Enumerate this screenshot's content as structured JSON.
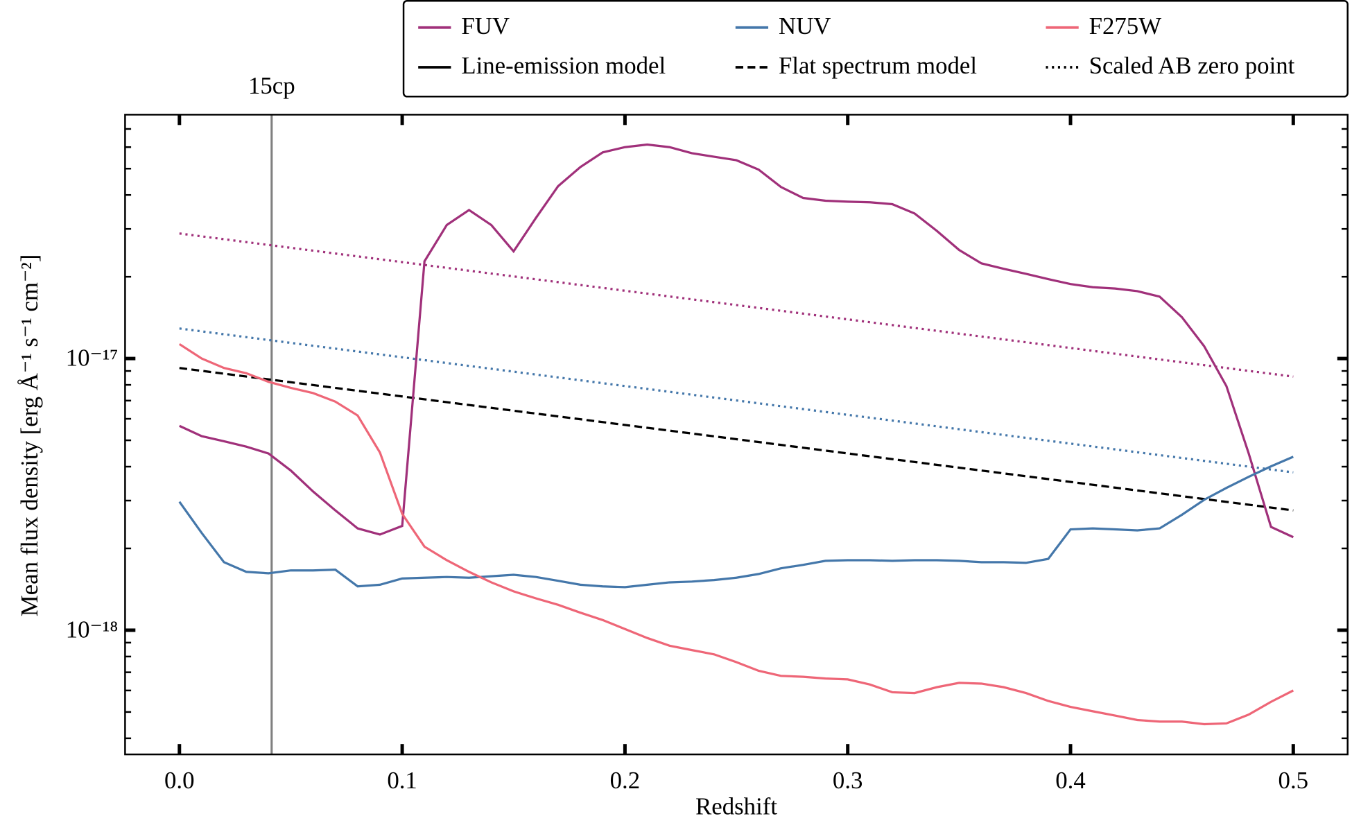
{
  "chart_data": {
    "type": "line",
    "xlabel": "Redshift",
    "ylabel": "Mean flux density [erg Å⁻¹ s⁻¹ cm⁻²]",
    "yscale": "log",
    "xlim": [
      -0.0244,
      0.5244
    ],
    "ylim": [
      3.49e-19,
      7.9e-17
    ],
    "xticks": [
      {
        "value": 0,
        "label": "0.0"
      },
      0.1,
      0.2,
      0.3,
      0.4,
      0.5
    ],
    "yticks": [
      {
        "value": 1e-18,
        "label": "10⁻¹⁸"
      },
      {
        "value": 1e-17,
        "label": "10⁻¹⁷"
      }
    ],
    "yminorticks": [
      4e-19,
      5e-19,
      6e-19,
      7e-19,
      8e-19,
      9e-19,
      2e-18,
      3e-18,
      4e-18,
      5e-18,
      6e-18,
      7e-18,
      8e-18,
      9e-18,
      2e-17,
      3e-17,
      4e-17,
      5e-17,
      6e-17,
      7e-17
    ],
    "legend": "upper right outside",
    "x": [
      0,
      0.01,
      0.02,
      0.03,
      0.04,
      0.05,
      0.06,
      0.07,
      0.08,
      0.09,
      0.1,
      0.11,
      0.12,
      0.13,
      0.14,
      0.15,
      0.16,
      0.17,
      0.18,
      0.19,
      0.2,
      0.21,
      0.22,
      0.23,
      0.24,
      0.25,
      0.26,
      0.27,
      0.28,
      0.29,
      0.3,
      0.31,
      0.32,
      0.33,
      0.34,
      0.35,
      0.36,
      0.37,
      0.38,
      0.39,
      0.4,
      0.41,
      0.42,
      0.43,
      0.44,
      0.45,
      0.46,
      0.47,
      0.48,
      0.49,
      0.5
    ],
    "series": [
      {
        "name": "FUV",
        "color": "#a0307a",
        "dash": "solid",
        "values": [
          5.65e-18,
          5.18e-18,
          4.96e-18,
          4.74e-18,
          4.47e-18,
          3.87e-18,
          3.24e-18,
          2.76e-18,
          2.37e-18,
          2.25e-18,
          2.42e-18,
          2.28e-17,
          3.1e-17,
          3.52e-17,
          3.1e-17,
          2.48e-17,
          3.29e-17,
          4.31e-17,
          5.07e-17,
          5.74e-17,
          6e-17,
          6.13e-17,
          6e-17,
          5.7e-17,
          5.53e-17,
          5.37e-17,
          4.96e-17,
          4.28e-17,
          3.9e-17,
          3.81e-17,
          3.78e-17,
          3.76e-17,
          3.7e-17,
          3.42e-17,
          2.95e-17,
          2.51e-17,
          2.24e-17,
          2.14e-17,
          2.05e-17,
          1.96e-17,
          1.88e-17,
          1.83e-17,
          1.81e-17,
          1.77e-17,
          1.69e-17,
          1.42e-17,
          1.11e-17,
          7.91e-18,
          4.47e-18,
          2.4e-18,
          2.2e-18
        ]
      },
      {
        "name": "NUV",
        "color": "#4477aa",
        "dash": "solid",
        "values": [
          2.97e-18,
          2.28e-18,
          1.78e-18,
          1.64e-18,
          1.62e-18,
          1.66e-18,
          1.66e-18,
          1.67e-18,
          1.45e-18,
          1.47e-18,
          1.55e-18,
          1.56e-18,
          1.57e-18,
          1.56e-18,
          1.58e-18,
          1.6e-18,
          1.57e-18,
          1.52e-18,
          1.47e-18,
          1.45e-18,
          1.44e-18,
          1.47e-18,
          1.5e-18,
          1.51e-18,
          1.53e-18,
          1.56e-18,
          1.61e-18,
          1.69e-18,
          1.74e-18,
          1.8e-18,
          1.81e-18,
          1.81e-18,
          1.8e-18,
          1.81e-18,
          1.81e-18,
          1.8e-18,
          1.78e-18,
          1.78e-18,
          1.77e-18,
          1.83e-18,
          2.35e-18,
          2.37e-18,
          2.35e-18,
          2.33e-18,
          2.37e-18,
          2.66e-18,
          3.02e-18,
          3.34e-18,
          3.67e-18,
          4.01e-18,
          4.35e-18
        ]
      },
      {
        "name": "F275W",
        "color": "#ee6677",
        "dash": "solid",
        "values": [
          1.13e-17,
          1e-17,
          9.23e-18,
          8.83e-18,
          8.21e-18,
          7.8e-18,
          7.46e-18,
          6.94e-18,
          6.17e-18,
          4.51e-18,
          2.68e-18,
          2.03e-18,
          1.81e-18,
          1.64e-18,
          1.5e-18,
          1.39e-18,
          1.31e-18,
          1.24e-18,
          1.16e-18,
          1.09e-18,
          1.01e-18,
          9.36e-19,
          8.77e-19,
          8.45e-19,
          8.15e-19,
          7.63e-19,
          7.09e-19,
          6.79e-19,
          6.74e-19,
          6.64e-19,
          6.59e-19,
          6.31e-19,
          5.91e-19,
          5.87e-19,
          6.17e-19,
          6.4e-19,
          6.36e-19,
          6.17e-19,
          5.87e-19,
          5.49e-19,
          5.22e-19,
          5.03e-19,
          4.85e-19,
          4.67e-19,
          4.61e-19,
          4.61e-19,
          4.51e-19,
          4.54e-19,
          4.89e-19,
          5.45e-19,
          6e-19
        ]
      }
    ],
    "styles": [
      {
        "name": "Line-emission model",
        "dash": "solid"
      },
      {
        "name": "Flat spectrum model",
        "dash": "dashed"
      },
      {
        "name": "Scaled AB zero point",
        "dash": "dotted"
      }
    ],
    "model_lines": [
      {
        "dash": "dotted",
        "color": "#a0307a",
        "x": [
          0,
          0.5
        ],
        "values": [
          2.886e-17,
          8.58e-18
        ]
      },
      {
        "dash": "dotted",
        "color": "#4477aa",
        "x": [
          0,
          0.5
        ],
        "values": [
          1.29e-17,
          3.81e-18
        ]
      },
      {
        "dash": "dashed",
        "color": "#000000",
        "x": [
          0,
          0.5
        ],
        "values": [
          9.23e-18,
          2.76e-18
        ]
      }
    ],
    "vlines": [
      {
        "x": 0.0414,
        "label": "15cp",
        "color": "#808080"
      }
    ]
  }
}
